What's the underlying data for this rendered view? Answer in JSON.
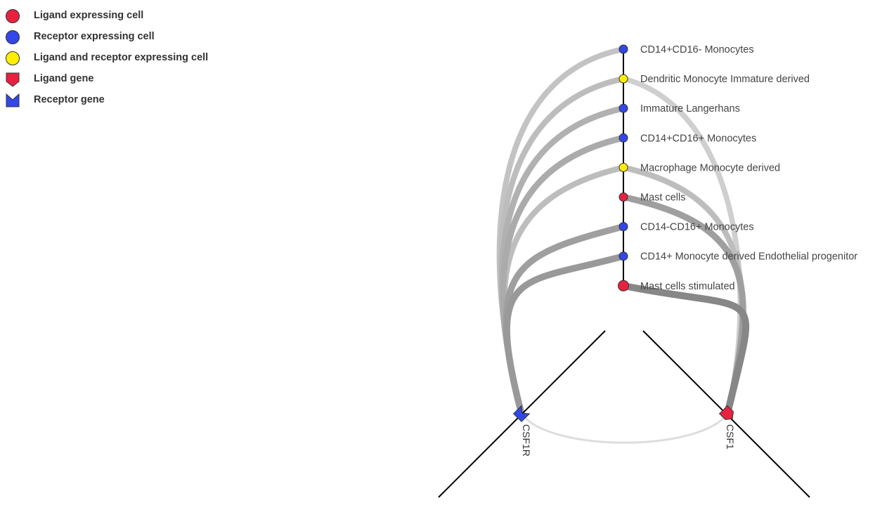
{
  "legend": {
    "items": [
      {
        "label": "Ligand expressing cell",
        "shape": "circle",
        "color": "#e8213f"
      },
      {
        "label": "Receptor expressing cell",
        "shape": "circle",
        "color": "#3346e8"
      },
      {
        "label": "Ligand and receptor expressing cell",
        "shape": "circle",
        "color": "#ffee00"
      },
      {
        "label": "Ligand gene",
        "shape": "ligand-gene",
        "color": "#e8213f"
      },
      {
        "label": "Receptor gene",
        "shape": "receptor-gene",
        "color": "#3346e8"
      }
    ]
  },
  "cells": [
    {
      "name": "CD14+CD16- Monocytes",
      "role": "receptor"
    },
    {
      "name": "Dendritic Monocyte Immature derived",
      "role": "both"
    },
    {
      "name": "Immature Langerhans",
      "role": "receptor"
    },
    {
      "name": "CD14+CD16+ Monocytes",
      "role": "receptor"
    },
    {
      "name": "Macrophage Monocyte derived",
      "role": "both"
    },
    {
      "name": "Mast cells",
      "role": "ligand"
    },
    {
      "name": "CD14-CD16+ Monocytes",
      "role": "receptor"
    },
    {
      "name": "CD14+ Monocyte derived Endothelial progenitor",
      "role": "receptor"
    },
    {
      "name": "Mast cells stimulated",
      "role": "ligand"
    }
  ],
  "genes": {
    "receptor": {
      "name": "CSF1R",
      "color": "#3346e8"
    },
    "ligand": {
      "name": "CSF1",
      "color": "#e8213f"
    }
  },
  "links": [
    {
      "cell": 0,
      "gene": "receptor",
      "strength": 0.25
    },
    {
      "cell": 1,
      "gene": "receptor",
      "strength": 0.3
    },
    {
      "cell": 1,
      "gene": "ligand",
      "strength": 0.15
    },
    {
      "cell": 2,
      "gene": "receptor",
      "strength": 0.4
    },
    {
      "cell": 3,
      "gene": "receptor",
      "strength": 0.45
    },
    {
      "cell": 4,
      "gene": "receptor",
      "strength": 0.3
    },
    {
      "cell": 4,
      "gene": "ligand",
      "strength": 0.3
    },
    {
      "cell": 5,
      "gene": "ligand",
      "strength": 0.55
    },
    {
      "cell": 6,
      "gene": "receptor",
      "strength": 0.55
    },
    {
      "cell": 7,
      "gene": "receptor",
      "strength": 0.6
    },
    {
      "cell": 8,
      "gene": "ligand",
      "strength": 0.75
    }
  ],
  "gene_link": {
    "from": "ligand",
    "to": "receptor",
    "strength": 0.1
  },
  "colors": {
    "ligand": "#e8213f",
    "receptor": "#3346e8",
    "both": "#ffee00"
  }
}
